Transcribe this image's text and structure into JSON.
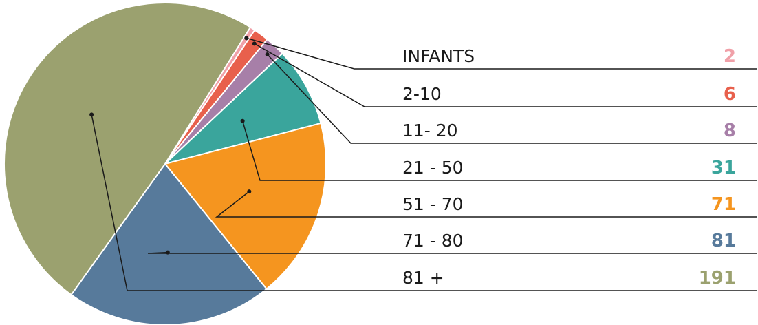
{
  "chart_data": {
    "type": "pie",
    "categories": [
      "INFANTS",
      "2-10",
      "11- 20",
      "21 - 50",
      "51 - 70",
      "71 - 80",
      "81 +"
    ],
    "values": [
      2,
      6,
      8,
      31,
      71,
      81,
      191
    ],
    "colors": [
      "#f0a0a8",
      "#e8604c",
      "#a77fa8",
      "#3aa59c",
      "#f5951f",
      "#577a9b",
      "#9ba16f"
    ]
  }
}
